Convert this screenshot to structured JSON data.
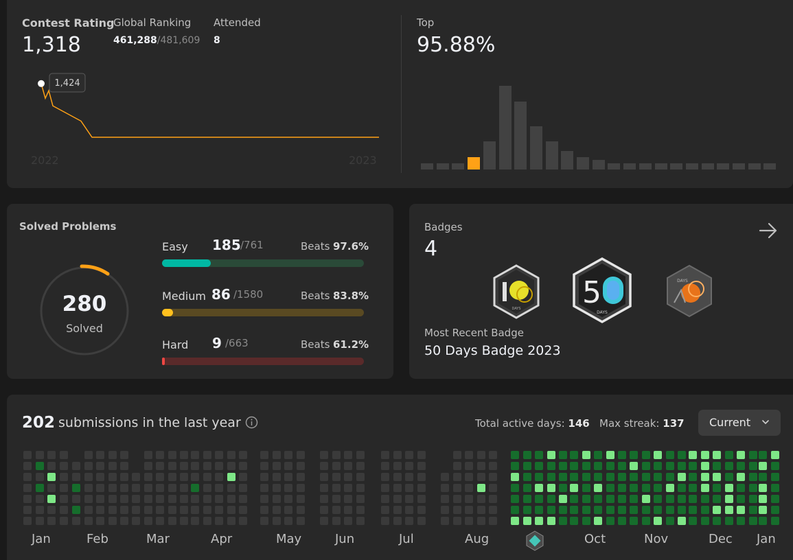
{
  "contest": {
    "rating_label": "Contest Rating",
    "rating_value": "1,318",
    "ranking_label": "Global Ranking",
    "ranking_value": "461,288",
    "ranking_total": "/481,609",
    "attended_label": "Attended",
    "attended_value": "8",
    "tooltip_value": "1,424",
    "x_start": "2022",
    "x_end": "2023",
    "top_label": "Top",
    "top_value": "95.88%"
  },
  "chart_data": [
    {
      "type": "line",
      "series": [
        {
          "values": [
            1424,
            1395,
            1410,
            1380,
            1350,
            1318,
            1318,
            1318,
            1318
          ]
        }
      ],
      "xlabel": "",
      "ylabel": "",
      "tick_labels": [
        "2022",
        "2023"
      ],
      "color": "#ffa116"
    },
    {
      "type": "bar",
      "values": [
        2,
        2,
        2,
        4,
        9,
        27,
        22,
        14,
        9,
        6,
        4,
        3,
        2,
        2,
        2,
        2,
        2,
        2,
        2,
        2,
        2,
        2,
        2
      ],
      "highlight_index": 3,
      "highlight_color": "#ffa116",
      "color": "#424242"
    }
  ],
  "solved": {
    "title": "Solved Problems",
    "count": "280",
    "count_label": "Solved",
    "beats_label": "Beats",
    "rows": [
      {
        "name": "Easy",
        "count": "185",
        "total": "/761",
        "beats": "97.6%",
        "fraction": 0.243,
        "fill": "#00b8a3",
        "track": "#2a4a38"
      },
      {
        "name": "Medium",
        "count": "86",
        "total": "/1580",
        "beats": "83.8%",
        "fraction": 0.054,
        "fill": "#ffc01e",
        "track": "#5a4a22"
      },
      {
        "name": "Hard",
        "count": "9",
        "total": "/663",
        "beats": "61.2%",
        "fraction": 0.014,
        "fill": "#ef4743",
        "track": "#5a2a2a"
      }
    ]
  },
  "badges": {
    "label": "Badges",
    "count": "4",
    "recent_label": "Most Recent Badge",
    "recent_name": "50 Days Badge 2023",
    "badge_icons": [
      "badge-100-days-icon",
      "badge-50-days-icon",
      "badge-days-icon"
    ]
  },
  "calendar": {
    "count": "202",
    "count_text": "submissions in the last year",
    "active_label": "Total active days:",
    "active_value": "146",
    "streak_label": "Max streak:",
    "streak_value": "137",
    "dropdown_value": "Current",
    "months": [
      "Jan",
      "Feb",
      "Mar",
      "Apr",
      "May",
      "Jun",
      "Jul",
      "Aug",
      "Oct",
      "Nov",
      "Dec",
      "Jan"
    ],
    "colors": {
      "empty": "#3a3a3a",
      "active": "#166d2c",
      "bright": "#7ee787"
    }
  }
}
